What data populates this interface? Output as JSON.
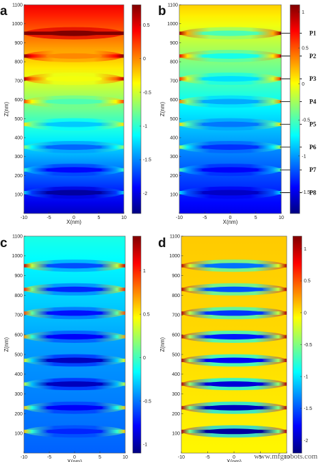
{
  "watermark": "www.mfgrobots.com",
  "colors": {
    "jet_dark_blue": "#00007f",
    "jet_cyan": "#00ffff",
    "jet_yellow": "#ffff00",
    "jet_dark_red": "#7f0000"
  },
  "chart_data": [
    {
      "type": "heatmap",
      "panel_label": "a",
      "xlabel": "X(nm)",
      "ylabel": "Z(nm)",
      "xlim": [
        -10,
        10
      ],
      "ylim": [
        0,
        1100
      ],
      "x_ticks": [
        -10,
        -5,
        0,
        5,
        10
      ],
      "y_ticks": [
        100,
        200,
        300,
        400,
        500,
        600,
        700,
        800,
        900,
        1000,
        1100
      ],
      "colorbar": {
        "min": -2.3,
        "max": 0.8,
        "ticks": [
          0.5,
          0,
          -0.5,
          -1,
          -1.5,
          -2
        ]
      },
      "background_trend": {
        "z": [
          0,
          550,
          1100
        ],
        "value": [
          -2.1,
          -0.8,
          0.45
        ]
      },
      "bands": [
        {
          "z": 950,
          "center": 0.9,
          "edge": 0.8
        },
        {
          "z": 830,
          "center": 0.0,
          "edge": 0.8
        },
        {
          "z": 710,
          "center": -0.4,
          "edge": 0.6
        },
        {
          "z": 590,
          "center": -0.9,
          "edge": 0.2
        },
        {
          "z": 470,
          "center": -1.3,
          "edge": -0.3
        },
        {
          "z": 350,
          "center": -1.6,
          "edge": -0.7
        },
        {
          "z": 230,
          "center": -1.9,
          "edge": -1.0
        },
        {
          "z": 110,
          "center": -2.2,
          "edge": -1.3
        }
      ]
    },
    {
      "type": "heatmap",
      "panel_label": "b",
      "xlabel": "X(nm)",
      "ylabel": "Z(nm)",
      "xlim": [
        -10,
        10
      ],
      "ylim": [
        0,
        1100
      ],
      "x_ticks": [
        -10,
        -5,
        0,
        5,
        10
      ],
      "y_ticks": [
        100,
        200,
        300,
        400,
        500,
        600,
        700,
        800,
        900,
        1000,
        1100
      ],
      "colorbar": {
        "min": -1.8,
        "max": 1.1,
        "ticks": [
          1,
          0.5,
          0,
          -0.5,
          -1,
          -1.5
        ]
      },
      "background_trend": {
        "z": [
          0,
          550,
          1100
        ],
        "value": [
          -1.5,
          -0.75,
          0.15
        ]
      },
      "bands": [
        {
          "z": 950,
          "center": -0.5,
          "edge": 1.0,
          "marker": "P1"
        },
        {
          "z": 830,
          "center": -0.65,
          "edge": 0.8,
          "marker": "P2"
        },
        {
          "z": 710,
          "center": -0.8,
          "edge": 0.6,
          "marker": "P3"
        },
        {
          "z": 590,
          "center": -0.95,
          "edge": 0.35,
          "marker": "P4"
        },
        {
          "z": 470,
          "center": -1.1,
          "edge": 0.1,
          "marker": "P5"
        },
        {
          "z": 350,
          "center": -1.3,
          "edge": -0.2,
          "marker": "P6"
        },
        {
          "z": 230,
          "center": -1.45,
          "edge": -0.5,
          "marker": "P7"
        },
        {
          "z": 110,
          "center": -1.6,
          "edge": -0.8,
          "marker": "P8"
        }
      ]
    },
    {
      "type": "heatmap",
      "panel_label": "c",
      "xlabel": "X(nm)",
      "ylabel": "Z(nm)",
      "xlim": [
        -10,
        10
      ],
      "ylim": [
        0,
        1100
      ],
      "x_ticks": [
        -10,
        -5,
        0,
        5,
        10
      ],
      "y_ticks": [
        100,
        200,
        300,
        400,
        500,
        600,
        700,
        800,
        900,
        1000,
        1100
      ],
      "colorbar": {
        "min": -1.1,
        "max": 1.4,
        "ticks": [
          1,
          0.5,
          0,
          -0.5,
          -1
        ]
      },
      "background_trend": {
        "z": [
          0,
          550,
          1100
        ],
        "value": [
          -0.55,
          -0.4,
          -0.1
        ]
      },
      "bands": [
        {
          "z": 950,
          "center": -0.6,
          "edge": 1.2
        },
        {
          "z": 830,
          "center": -0.7,
          "edge": 1.0
        },
        {
          "z": 710,
          "center": -0.75,
          "edge": 0.9
        },
        {
          "z": 590,
          "center": -0.8,
          "edge": 0.7
        },
        {
          "z": 470,
          "center": -0.95,
          "edge": 0.4
        },
        {
          "z": 350,
          "center": -0.95,
          "edge": 0.3
        },
        {
          "z": 230,
          "center": -0.8,
          "edge": 0.6
        },
        {
          "z": 110,
          "center": -0.7,
          "edge": 0.6
        }
      ]
    },
    {
      "type": "heatmap",
      "panel_label": "d",
      "xlabel": "X(nm)",
      "ylabel": "Z(nm)",
      "xlim": [
        -10,
        10
      ],
      "ylim": [
        0,
        1100
      ],
      "x_ticks": [
        -10,
        -5,
        0,
        5,
        10
      ],
      "y_ticks": [
        100,
        200,
        300,
        400,
        500,
        600,
        700,
        800,
        900,
        1000,
        1100
      ],
      "colorbar": {
        "min": -2.2,
        "max": 1.2,
        "ticks": [
          1,
          0.5,
          0,
          -0.5,
          -1,
          -1.5,
          -2
        ]
      },
      "background_trend": {
        "z": [
          0,
          550,
          1100
        ],
        "value": [
          -0.05,
          0.05,
          0.1
        ]
      },
      "bands": [
        {
          "z": 950,
          "center": -1.4,
          "edge": 1.0
        },
        {
          "z": 830,
          "center": -1.5,
          "edge": 1.0
        },
        {
          "z": 710,
          "center": -1.6,
          "edge": 1.0
        },
        {
          "z": 590,
          "center": -1.7,
          "edge": 1.0
        },
        {
          "z": 470,
          "center": -1.8,
          "edge": 1.0
        },
        {
          "z": 350,
          "center": -1.9,
          "edge": 1.0
        },
        {
          "z": 230,
          "center": -2.0,
          "edge": 1.0
        },
        {
          "z": 110,
          "center": -2.1,
          "edge": 1.0
        }
      ]
    }
  ]
}
